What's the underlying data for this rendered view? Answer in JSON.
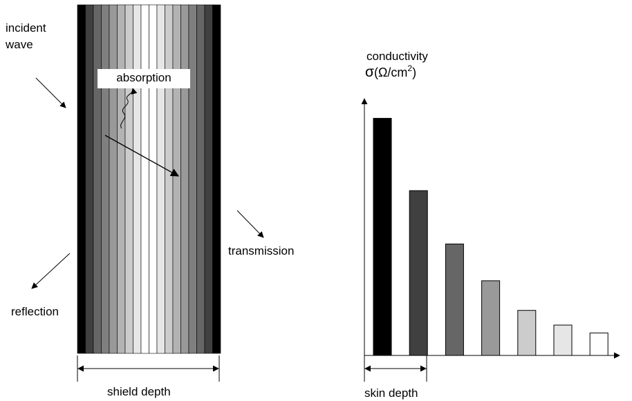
{
  "labels": {
    "incident_line1": "incident",
    "incident_line2": "wave",
    "absorption": "absorption",
    "transmission": "transmission",
    "reflection": "reflection",
    "shield_depth": "shield depth",
    "conductivity": "conductivity",
    "sigma_symbol": "σ",
    "sigma_unit_open": "(Ω/cm",
    "sigma_unit_exp": "2",
    "sigma_unit_close": ")",
    "skin_depth": "skin depth"
  },
  "shield": {
    "layer_colors": [
      "#000000",
      "#404040",
      "#666666",
      "#7f7f7f",
      "#999999",
      "#b3b3b3",
      "#cccccc",
      "#e6e6e6",
      "#ffffff",
      "#ffffff",
      "#e6e6e6",
      "#cccccc",
      "#b3b3b3",
      "#999999",
      "#7f7f7f",
      "#666666",
      "#404040",
      "#000000"
    ]
  },
  "chart_data": {
    "type": "bar",
    "title": "",
    "ylabel": "conductivity σ(Ω/cm²)",
    "xlabel": "",
    "annotation": "skin depth",
    "values": [
      1.0,
      0.695,
      0.47,
      0.315,
      0.19,
      0.128,
      0.095
    ],
    "colors": [
      "#000000",
      "#404040",
      "#666666",
      "#999999",
      "#cccccc",
      "#e6e6e6",
      "#ffffff"
    ],
    "ylim": [
      0,
      1.1
    ],
    "grid": false
  }
}
